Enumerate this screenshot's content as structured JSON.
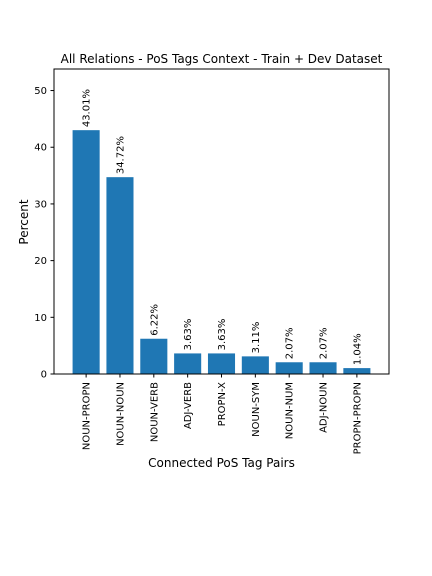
{
  "chart_data": {
    "type": "bar",
    "title": "All Relations - PoS Tags Context - Train + Dev Dataset",
    "xlabel": "Connected PoS Tag Pairs",
    "ylabel": "Percent",
    "categories": [
      "NOUN-PROPN",
      "NOUN-NOUN",
      "NOUN-VERB",
      "ADJ-VERB",
      "PROPN-X",
      "NOUN-SYM",
      "NOUN-NUM",
      "ADJ-NOUN",
      "PROPN-PROPN"
    ],
    "values": [
      43.01,
      34.72,
      6.22,
      3.63,
      3.63,
      3.11,
      2.07,
      2.07,
      1.04
    ],
    "data_labels": [
      "43.01%",
      "34.72%",
      "6.22%",
      "3.63%",
      "3.63%",
      "3.11%",
      "2.07%",
      "2.07%",
      "1.04%"
    ],
    "y_ticks": [
      0,
      10,
      20,
      30,
      40,
      50
    ],
    "ylim": [
      0,
      53.8
    ],
    "grid": false,
    "legend": "none",
    "bar_color": "#1f77b4"
  }
}
